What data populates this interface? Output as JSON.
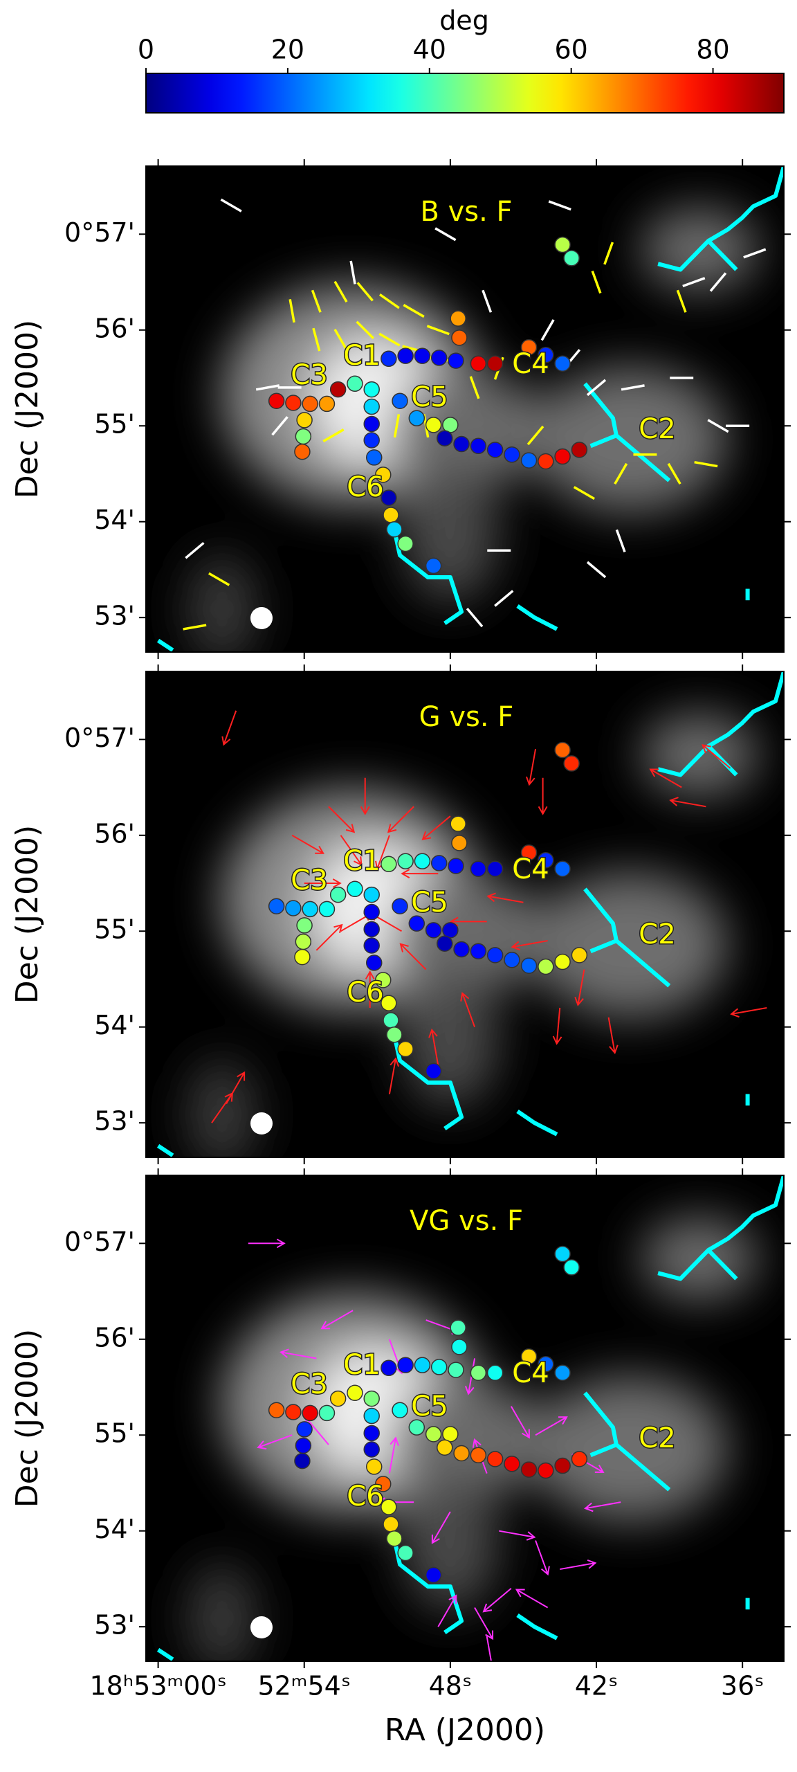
{
  "chart_data": {
    "type": "scatter",
    "colorbar": {
      "label": "deg",
      "lim": [
        0,
        90
      ],
      "ticks": [
        0,
        20,
        40,
        60,
        80
      ]
    },
    "xlabel": "RA (J2000)",
    "ylabel": "Dec (J2000)",
    "xlim": [
      60.5,
      34.3
    ],
    "xticks": [
      {
        "value": 60,
        "label": "18ʰ53ᵐ00ˢ"
      },
      {
        "value": 54,
        "label": "52ᵐ54ˢ"
      },
      {
        "value": 48,
        "label": "48ˢ"
      },
      {
        "value": 42,
        "label": "42ˢ"
      },
      {
        "value": 36,
        "label": "36ˢ"
      }
    ],
    "ylim": [
      52.64,
      57.71
    ],
    "yticks": [
      {
        "value": 57,
        "label": "0°57'"
      },
      {
        "value": 56,
        "label": "56'"
      },
      {
        "value": 55,
        "label": "55'"
      },
      {
        "value": 54,
        "label": "54'"
      },
      {
        "value": 53,
        "label": "53'"
      }
    ],
    "cores": [
      "C1",
      "C2",
      "C3",
      "C4",
      "C5",
      "C6"
    ],
    "spine_color": "#00ffff",
    "spines": [
      {
        "x": [
          42.47,
          41.32,
          41.18,
          42.24
        ],
        "y": [
          55.44,
          55.08,
          54.9,
          54.79
        ]
      },
      {
        "x": [
          41.18,
          39.01
        ],
        "y": [
          54.9,
          54.43
        ]
      },
      {
        "x": [
          39.47,
          38.55,
          37.4,
          36.25
        ],
        "y": [
          56.69,
          56.63,
          56.93,
          56.63
        ]
      },
      {
        "x": [
          37.4,
          36.6,
          36.02,
          35.56,
          34.64,
          34.31
        ],
        "y": [
          56.93,
          57.05,
          57.17,
          57.29,
          57.4,
          57.7
        ]
      },
      {
        "x": [
          50.3,
          50.07,
          48.92,
          48.0,
          47.54,
          48.23
        ],
        "y": [
          53.92,
          53.65,
          53.42,
          53.42,
          53.06,
          52.94
        ]
      },
      {
        "x": [
          45.24,
          44.54,
          43.62
        ],
        "y": [
          53.12,
          53.0,
          52.88
        ]
      },
      {
        "x": [
          60.0,
          59.4
        ],
        "y": [
          52.76,
          52.66
        ]
      },
      {
        "x": [
          35.79,
          35.79
        ],
        "y": [
          53.3,
          53.18
        ]
      }
    ],
    "points": {
      "x": [
        55.14,
        54.45,
        53.76,
        53.07,
        53.99,
        54.04,
        54.08,
        52.61,
        51.92,
        51.23,
        51.23,
        51.23,
        51.23,
        51.13,
        50.76,
        50.53,
        49.84,
        49.15,
        48.46,
        47.77,
        47.68,
        47.63,
        46.85,
        46.16,
        50.07,
        49.38,
        48.69,
        48.0,
        48.23,
        47.54,
        46.85,
        46.16,
        45.47,
        44.77,
        44.08,
        43.39,
        42.7,
        44.77,
        44.08,
        43.39,
        50.53,
        50.44,
        50.3,
        49.84,
        48.69,
        43.39,
        43.02
      ],
      "y": [
        55.26,
        55.24,
        55.23,
        55.23,
        55.06,
        54.89,
        54.73,
        55.38,
        55.44,
        55.38,
        55.2,
        55.02,
        54.85,
        54.67,
        54.49,
        55.7,
        55.73,
        55.73,
        55.71,
        55.68,
        56.12,
        55.92,
        55.65,
        55.65,
        55.26,
        55.08,
        55.01,
        55.01,
        54.87,
        54.81,
        54.79,
        54.75,
        54.7,
        54.64,
        54.63,
        54.68,
        54.75,
        55.82,
        55.74,
        55.65,
        54.25,
        54.07,
        53.92,
        53.77,
        53.54,
        56.89,
        56.75
      ]
    },
    "panels": [
      {
        "title": "B vs. F",
        "arrows": false,
        "angles": [
          80,
          75,
          70,
          65,
          60,
          45,
          70,
          85,
          40,
          35,
          30,
          10,
          15,
          20,
          60,
          15,
          10,
          10,
          10,
          12,
          65,
          70,
          80,
          85,
          20,
          25,
          55,
          45,
          5,
          8,
          10,
          12,
          15,
          20,
          75,
          80,
          85,
          70,
          15,
          20,
          5,
          60,
          30,
          45,
          20,
          50,
          40
        ],
        "vectors": [
          {
            "color": "#ffff00",
            "x": [
              54.5,
              53.5,
              52.5,
              51.5,
              50.5,
              49.5,
              48.5,
              53.5,
              52.5,
              51.5,
              50.5,
              49.5,
              48.5,
              47,
              46,
              49,
              50.2,
              52.8,
              44.5,
              42.5,
              41,
              40,
              38.8,
              37.5,
              42,
              41.5,
              38.5,
              57.5,
              58.5
            ],
            "y": [
              56.2,
              56.3,
              56.4,
              56.4,
              56.3,
              56.2,
              56.0,
              55.9,
              55.9,
              56.0,
              55.9,
              55.8,
              55.7,
              55.4,
              55.6,
              55.0,
              55.0,
              54.9,
              54.9,
              54.3,
              54.5,
              54.7,
              54.5,
              54.6,
              56.5,
              56.8,
              56.3,
              53.4,
              52.9
            ],
            "angle": [
              10,
              20,
              30,
              40,
              55,
              60,
              70,
              15,
              30,
              45,
              60,
              75,
              80,
              20,
              160,
              10,
              170,
              120,
              140,
              60,
              150,
              90,
              30,
              80,
              20,
              160,
              20,
              60,
              100
            ]
          },
          {
            "color": "#ffffff",
            "x": [
              55.5,
              54.6,
              55,
              52,
              48.2,
              46.5,
              44,
              43,
              42,
              40.5,
              38.5,
              37,
              36.2,
              38,
              37,
              41,
              42,
              46,
              45.8,
              47,
              57,
              58.5,
              43.5,
              35.5
            ],
            "y": [
              55.4,
              55.4,
              55.0,
              56.6,
              57.0,
              56.3,
              56.0,
              55.7,
              55.4,
              55.4,
              55.5,
              55.0,
              55.0,
              56.5,
              56.5,
              53.8,
              53.5,
              53.7,
              53.2,
              53.0,
              57.3,
              53.7,
              57.3,
              56.8
            ],
            "angle": [
              100,
              90,
              140,
              10,
              60,
              20,
              150,
              140,
              130,
              100,
              90,
              60,
              90,
              110,
              140,
              20,
              50,
              90,
              130,
              40,
              60,
              130,
              70,
              110
            ]
          }
        ]
      },
      {
        "title": "G vs. F",
        "arrows": true,
        "angles": [
          20,
          25,
          30,
          35,
          45,
          50,
          55,
          40,
          35,
          30,
          10,
          8,
          8,
          10,
          50,
          45,
          40,
          35,
          15,
          12,
          60,
          65,
          10,
          8,
          15,
          12,
          10,
          8,
          5,
          10,
          12,
          15,
          18,
          20,
          50,
          55,
          60,
          75,
          15,
          20,
          55,
          40,
          45,
          60,
          10,
          70,
          75
        ],
        "vectors": [
          {
            "color": "#ff2020",
            "x": [
              51.5,
              53,
              49.5,
              54,
              48.5,
              53.5,
              49,
              51.3,
              52.5,
              50.5,
              54.5,
              48,
              52.5,
              50,
              46.5,
              45,
              44,
              42.5,
              41.5,
              43.5,
              47,
              48.5,
              50.5,
              57.2,
              57.8,
              56.8,
              44.5,
              44.2,
              38.5,
              37.5,
              36.5,
              35
            ],
            "y": [
              56.6,
              56.3,
              56.3,
              55.5,
              55.6,
              54.8,
              54.6,
              54.2,
              56.0,
              56.0,
              56.0,
              56.2,
              55.0,
              55.0,
              55.1,
              55.3,
              54.9,
              54.6,
              54.1,
              54.2,
              54.0,
              53.6,
              53.3,
              53.2,
              53.0,
              57.3,
              56.9,
              56.6,
              56.5,
              56.3,
              56.7,
              54.2
            ],
            "angle": [
              180,
              225,
              135,
              270,
              90,
              315,
              45,
              0,
              215,
              160,
              240,
              130,
              300,
              60,
              90,
              80,
              100,
              170,
              190,
              175,
              20,
              10,
              350,
              330,
              325,
              160,
              170,
              180,
              60,
              80,
              50,
              100
            ]
          }
        ]
      },
      {
        "title": "VG vs. F",
        "arrows": true,
        "angles": [
          70,
          75,
          80,
          40,
          15,
          10,
          5,
          60,
          55,
          45,
          30,
          10,
          8,
          60,
          70,
          10,
          12,
          30,
          35,
          40,
          40,
          35,
          45,
          35,
          35,
          40,
          50,
          55,
          60,
          65,
          70,
          75,
          80,
          85,
          80,
          85,
          75,
          60,
          20,
          25,
          55,
          60,
          50,
          40,
          10,
          30,
          35
        ],
        "vectors": [
          {
            "color": "#ff30ff",
            "x": [
              52,
              50.5,
              49,
              53.5,
              47,
              45.5,
              44.5,
              43,
              41,
              46.5,
              48,
              46,
              44.5,
              43.5,
              45.5,
              47,
              48.5,
              44,
              46.5,
              54.5,
              53,
              56.3,
              50.5,
              49.5
            ],
            "y": [
              56.3,
              56.0,
              56.2,
              55.8,
              55.8,
              55.3,
              55.0,
              54.8,
              54.3,
              54.6,
              54.2,
              54.0,
              53.9,
              53.6,
              53.4,
              53.2,
              53.0,
              53.2,
              52.9,
              55.0,
              54.9,
              57.0,
              54.6,
              54.3
            ],
            "angle": [
              120,
              200,
              250,
              80,
              170,
              210,
              300,
              240,
              100,
              20,
              150,
              260,
              200,
              280,
              130,
              210,
              330,
              60,
              190,
              110,
              40,
              270,
              350,
              90
            ]
          }
        ]
      }
    ]
  }
}
